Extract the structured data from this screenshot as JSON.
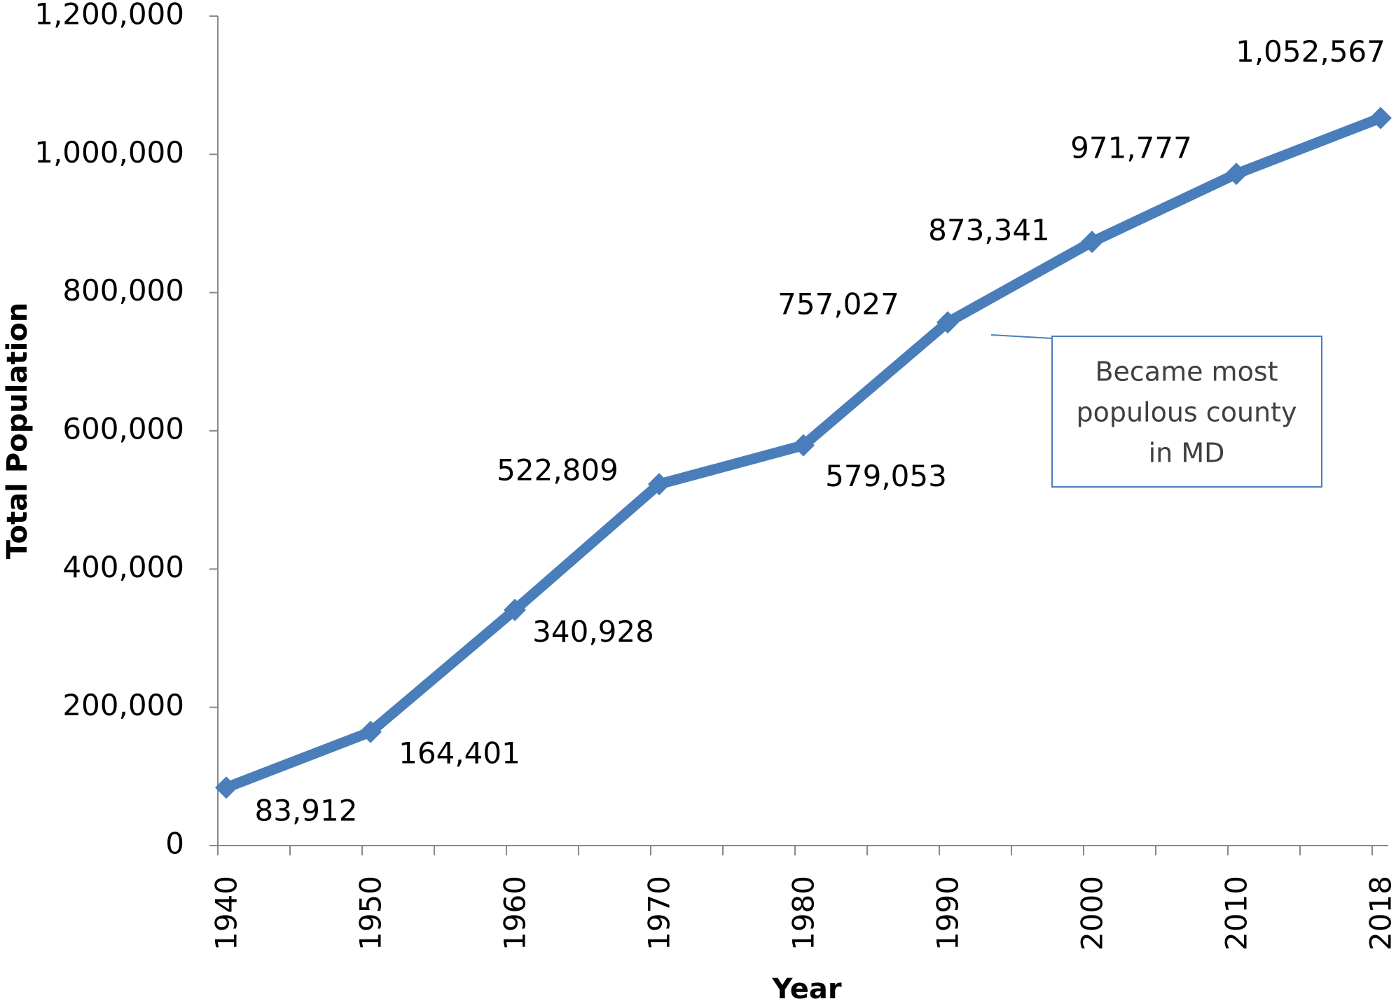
{
  "chart_data": {
    "type": "line",
    "categories": [
      "1940",
      "1950",
      "1960",
      "1970",
      "1980",
      "1990",
      "2000",
      "2010",
      "2018"
    ],
    "series": [
      {
        "color": "#4a7ebb",
        "values": [
          83912,
          164401,
          340928,
          522809,
          579053,
          757027,
          873341,
          971777,
          1052567
        ],
        "value_labels": [
          "83,912",
          "164,401",
          "340,928",
          "522,809",
          "579,053",
          "757,027",
          "873,341",
          "971,777",
          "1,052,567"
        ]
      }
    ],
    "ylabel": "Total Population",
    "xlabel": "Year",
    "ylim": [
      0,
      1200000
    ],
    "yticks": [
      0,
      {
        "value": 200000,
        "label": "200,000"
      },
      {
        "value": 400000,
        "label": "400,000"
      },
      {
        "value": 600000,
        "label": "600,000"
      },
      {
        "value": 800000,
        "label": "800,000"
      },
      {
        "value": 1000000,
        "label": "1,000,000"
      },
      {
        "value": 1200000,
        "label": "1,200,000"
      }
    ],
    "annotation": [
      "Became most",
      "populous county",
      "in MD"
    ]
  }
}
